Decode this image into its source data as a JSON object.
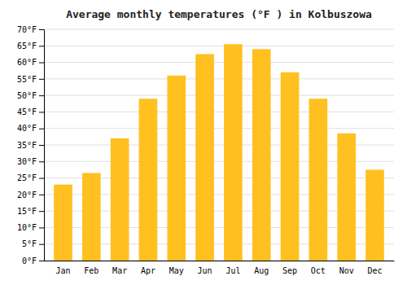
{
  "chart_data": {
    "type": "bar",
    "title": "Average monthly temperatures (°F ) in Kolbuszowa",
    "categories": [
      "Jan",
      "Feb",
      "Mar",
      "Apr",
      "May",
      "Jun",
      "Jul",
      "Aug",
      "Sep",
      "Oct",
      "Nov",
      "Dec"
    ],
    "values": [
      23.0,
      26.5,
      37.0,
      49.0,
      56.0,
      62.5,
      65.5,
      64.0,
      57.0,
      49.0,
      38.5,
      27.5
    ],
    "color": "#FFC020",
    "ylim": [
      0,
      70
    ],
    "yticks": [
      {
        "value": 0,
        "label": "0°F"
      },
      {
        "value": 5,
        "label": "5°F"
      },
      {
        "value": 10,
        "label": "10°F"
      },
      {
        "value": 15,
        "label": "15°F"
      },
      {
        "value": 20,
        "label": "20°F"
      },
      {
        "value": 25,
        "label": "25°F"
      },
      {
        "value": 30,
        "label": "30°F"
      },
      {
        "value": 35,
        "label": "35°F"
      },
      {
        "value": 40,
        "label": "40°F"
      },
      {
        "value": 45,
        "label": "45°F"
      },
      {
        "value": 50,
        "label": "50°F"
      },
      {
        "value": 55,
        "label": "55°F"
      },
      {
        "value": 60,
        "label": "60°F"
      },
      {
        "value": 65,
        "label": "65°F"
      },
      {
        "value": 70,
        "label": "70°F"
      }
    ],
    "grid": true
  }
}
